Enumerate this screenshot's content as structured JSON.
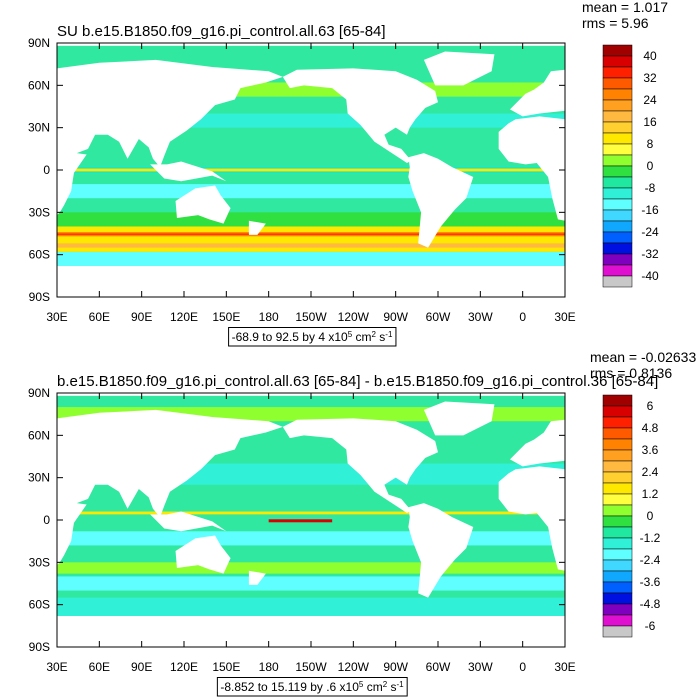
{
  "axes": {
    "xlabels": [
      "30E",
      "60E",
      "90E",
      "120E",
      "150E",
      "180",
      "150W",
      "120W",
      "90W",
      "60W",
      "30W",
      "0",
      "30E"
    ],
    "ylabels": [
      "90N",
      "60N",
      "30N",
      "0",
      "30S",
      "60S",
      "90S"
    ]
  },
  "panels": [
    {
      "title": "SU b.e15.B1850.f09_g16.pi_control.all.63 [65-84]",
      "stats": [
        "mean = 1.017",
        "rms = 5.96"
      ],
      "colorbar": {
        "labels": [
          "40",
          "32",
          "24",
          "16",
          "8",
          "0",
          "-8",
          "-16",
          "-24",
          "-32",
          "-40"
        ],
        "colors": [
          "#a00000",
          "#d80000",
          "#ff2000",
          "#ff5a00",
          "#ff8200",
          "#ffa020",
          "#ffb840",
          "#ffd030",
          "#ffe800",
          "#ffff40",
          "#90ff30",
          "#30e040",
          "#20e8a0",
          "#30f0d8",
          "#60ffff",
          "#40d8ff",
          "#10a8ff",
          "#0060ff",
          "#0010e0",
          "#8000c0",
          "#e010d0",
          "#c8c8c8"
        ]
      },
      "info": [
        {
          "text": "-68.9 to 92.5 by 4 x10"
        },
        {
          "text": "5",
          "sup": true
        },
        {
          "text": " cm"
        },
        {
          "text": "2",
          "sup": true
        },
        {
          "text": " s"
        },
        {
          "text": "-1",
          "sup": true
        }
      ]
    },
    {
      "title": "b.e15.B1850.f09_g16.pi_control.all.63 [65-84] - b.e15.B1850.f09_g16.pi_control.36 [65-84]",
      "stats": [
        "mean = -0.02633",
        "rms = 0.8136"
      ],
      "colorbar": {
        "labels": [
          "6",
          "4.8",
          "3.6",
          "2.4",
          "1.2",
          "0",
          "-1.2",
          "-2.4",
          "-3.6",
          "-4.8",
          "-6"
        ],
        "colors": [
          "#a00000",
          "#d80000",
          "#ff2000",
          "#ff5a00",
          "#ff8200",
          "#ffa020",
          "#ffb840",
          "#ffd030",
          "#ffe800",
          "#ffff40",
          "#90ff30",
          "#30e040",
          "#20e8a0",
          "#30f0d8",
          "#60ffff",
          "#40d8ff",
          "#10a8ff",
          "#0060ff",
          "#0010e0",
          "#8000c0",
          "#e010d0",
          "#c8c8c8"
        ]
      },
      "info": [
        {
          "text": "-8.852 to 15.119 by .6 x10"
        },
        {
          "text": "5",
          "sup": true
        },
        {
          "text": " cm"
        },
        {
          "text": "2",
          "sup": true
        },
        {
          "text": " s"
        },
        {
          "text": "-1",
          "sup": true
        }
      ]
    }
  ]
}
